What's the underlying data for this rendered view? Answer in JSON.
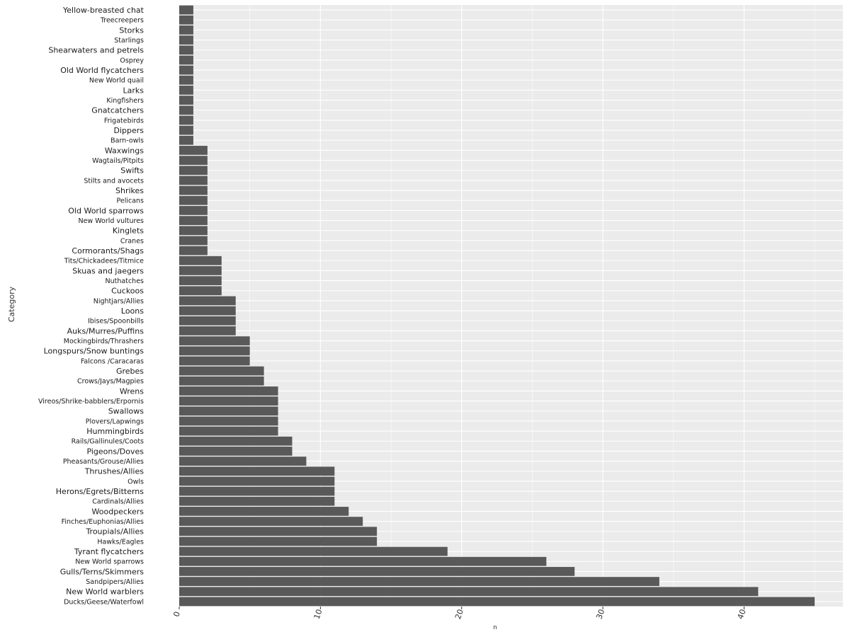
{
  "chart_data": {
    "type": "bar",
    "orientation": "horizontal",
    "xlabel": "n",
    "ylabel": "Category",
    "xlim": [
      0,
      47
    ],
    "x_ticks": [
      0,
      10,
      20,
      30,
      40
    ],
    "grid": true,
    "legend": "none",
    "bar_color": "#595959",
    "panel_color": "#ebebeb",
    "grid_color": "#ffffff",
    "categories": [
      "Yellow-breasted chat",
      "Treecreepers",
      "Storks",
      "Starlings",
      "Shearwaters and petrels",
      "Osprey",
      "Old World flycatchers",
      "New World quail",
      "Larks",
      "Kingfishers",
      "Gnatcatchers",
      "Frigatebirds",
      "Dippers",
      "Barn-owls",
      "Waxwings",
      "Wagtails/Pitpits",
      "Swifts",
      "Stilts and avocets",
      "Shrikes",
      "Pelicans",
      "Old World sparrows",
      "New World vultures",
      "Kinglets",
      "Cranes",
      "Cormorants/Shags",
      "Tits/Chickadees/Titmice",
      "Skuas and jaegers",
      "Nuthatches",
      "Cuckoos",
      "Nightjars/Allies",
      "Loons",
      "Ibises/Spoonbills",
      "Auks/Murres/Puffins",
      "Mockingbirds/Thrashers",
      "Longspurs/Snow buntings",
      "Falcons /Caracaras",
      "Grebes",
      "Crows/Jays/Magpies",
      "Wrens",
      "Vireos/Shrike-babblers/Erpornis",
      "Swallows",
      "Plovers/Lapwings",
      "Hummingbirds",
      "Rails/Gallinules/Coots",
      "Pigeons/Doves",
      "Pheasants/Grouse/Allies",
      "Thrushes/Allies",
      "Owls",
      "Herons/Egrets/Bitterns",
      "Cardinals/Allies",
      "Woodpeckers",
      "Finches/Euphonias/Allies",
      "Troupials/Allies",
      "Hawks/Eagles",
      "Tyrant flycatchers",
      "New World sparrows",
      "Gulls/Terns/Skimmers",
      "Sandpipers/Allies",
      "New World warblers",
      "Ducks/Geese/Waterfowl"
    ],
    "values": [
      1,
      1,
      1,
      1,
      1,
      1,
      1,
      1,
      1,
      1,
      1,
      1,
      1,
      1,
      2,
      2,
      2,
      2,
      2,
      2,
      2,
      2,
      2,
      2,
      2,
      3,
      3,
      3,
      3,
      4,
      4,
      4,
      4,
      5,
      5,
      5,
      6,
      6,
      7,
      7,
      7,
      7,
      7,
      8,
      8,
      9,
      11,
      11,
      11,
      11,
      12,
      13,
      14,
      14,
      19,
      26,
      28,
      34,
      41,
      45
    ]
  }
}
